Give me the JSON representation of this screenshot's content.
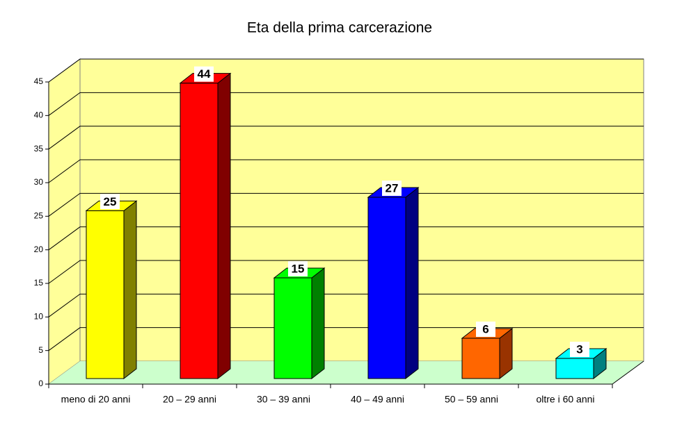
{
  "chart_data": {
    "type": "bar3d",
    "title": "Eta della prima carcerazione",
    "categories": [
      "meno di 20 anni",
      "20 – 29 anni",
      "30 – 39 anni",
      "40 – 49 anni",
      "50 – 59 anni",
      "oltre i 60 anni"
    ],
    "values": [
      25,
      44,
      15,
      27,
      6,
      3
    ],
    "colors": [
      "#ffff00",
      "#ff0000",
      "#00ff00",
      "#0000ff",
      "#ff6600",
      "#00ffff"
    ],
    "side_colors": [
      "#808000",
      "#800000",
      "#008000",
      "#000080",
      "#993300",
      "#008080"
    ],
    "wall_color": "#ffff99",
    "floor_color": "#ccffcc",
    "ylim": [
      0,
      45
    ],
    "yticks": [
      0,
      5,
      10,
      15,
      20,
      25,
      30,
      35,
      40,
      45
    ],
    "grid": true
  }
}
